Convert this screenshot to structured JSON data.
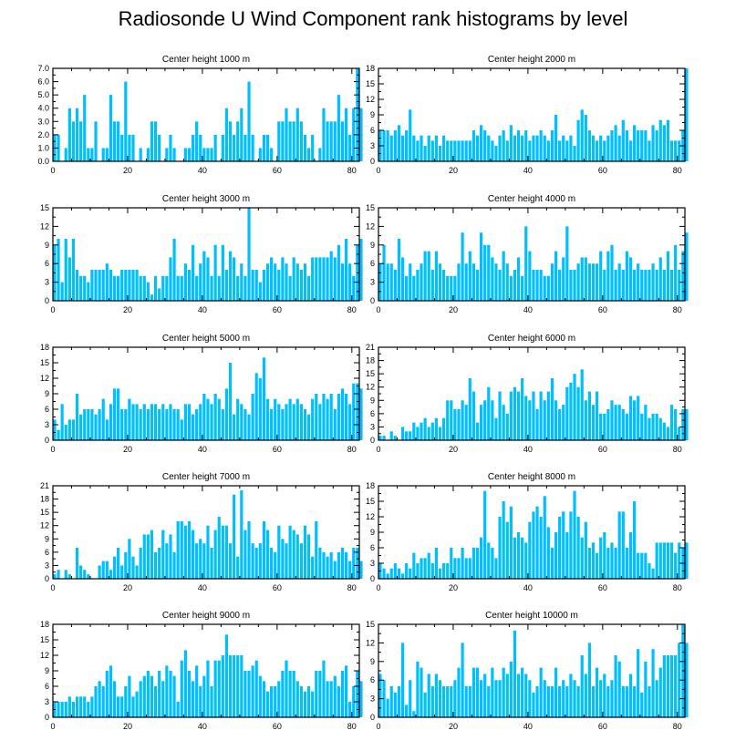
{
  "title": "Radiosonde U Wind Component rank histograms by level",
  "colors": {
    "bar": "#00bfff",
    "axis": "#000000"
  },
  "chart_data": [
    {
      "type": "bar",
      "title": "Center height 1000 m",
      "xlabel": "",
      "ylabel": "",
      "xlim": [
        0,
        82
      ],
      "ylim": [
        0,
        7
      ],
      "xticks": [
        "0",
        "20",
        "40",
        "60",
        "80"
      ],
      "yticks": [
        "0.0",
        "1.0",
        "2.0",
        "3.0",
        "4.0",
        "5.0",
        "6.0",
        "7.0"
      ],
      "values": [
        2,
        2,
        0,
        1,
        4,
        3,
        4,
        3,
        5,
        1,
        1,
        3,
        0,
        1,
        1,
        5,
        3,
        3,
        2,
        6,
        2,
        2,
        0,
        1,
        0,
        1,
        3,
        3,
        2,
        0,
        1,
        2,
        1,
        0,
        0,
        1,
        1,
        2,
        3,
        2,
        1,
        1,
        1,
        2,
        0,
        2,
        4,
        3,
        2,
        3,
        4,
        2,
        6,
        2,
        0,
        1,
        2,
        2,
        1,
        0,
        3,
        3,
        4,
        3,
        3,
        4,
        3,
        2,
        1,
        2,
        0,
        1,
        4,
        3,
        3,
        3,
        5,
        3,
        4,
        2,
        4,
        7,
        4
      ]
    },
    {
      "type": "bar",
      "title": "Center height 2000 m",
      "xlabel": "",
      "ylabel": "",
      "xlim": [
        0,
        82
      ],
      "ylim": [
        0,
        18
      ],
      "xticks": [
        "0",
        "20",
        "40",
        "60",
        "80"
      ],
      "yticks": [
        "0",
        "3",
        "6",
        "9",
        "12",
        "15",
        "18"
      ],
      "values": [
        6,
        6,
        6,
        5,
        6,
        7,
        5,
        6,
        10,
        5,
        4,
        5,
        3,
        5,
        4,
        5,
        3,
        5,
        4,
        4,
        4,
        4,
        4,
        4,
        4,
        6,
        5,
        7,
        6,
        5,
        4,
        3,
        5,
        6,
        4,
        7,
        5,
        6,
        5,
        6,
        4,
        5,
        5,
        6,
        5,
        4,
        6,
        9,
        4,
        5,
        4,
        5,
        3,
        8,
        10,
        9,
        6,
        5,
        4,
        5,
        4,
        5,
        6,
        7,
        5,
        8,
        6,
        4,
        7,
        6,
        6,
        6,
        4,
        7,
        6,
        8,
        7,
        8,
        4,
        4,
        4,
        6,
        18
      ]
    },
    {
      "type": "bar",
      "title": "Center height 3000 m",
      "xlabel": "",
      "ylabel": "",
      "xlim": [
        0,
        82
      ],
      "ylim": [
        0,
        15
      ],
      "xticks": [
        "0",
        "20",
        "40",
        "60",
        "80"
      ],
      "yticks": [
        "0",
        "3",
        "6",
        "9",
        "12",
        "15"
      ],
      "values": [
        9,
        10,
        3,
        10,
        7,
        10,
        5,
        4,
        4,
        3,
        5,
        5,
        5,
        5,
        6,
        5,
        4,
        4,
        5,
        5,
        5,
        5,
        5,
        4,
        4,
        3,
        1,
        4,
        2,
        4,
        4,
        7,
        10,
        4,
        4,
        6,
        5,
        9,
        4,
        6,
        8,
        7,
        4,
        9,
        4,
        9,
        5,
        8,
        7,
        4,
        6,
        4,
        15,
        5,
        5,
        3,
        5,
        6,
        7,
        6,
        5,
        7,
        6,
        4,
        7,
        6,
        5,
        6,
        4,
        7,
        7,
        7,
        7,
        7,
        8,
        7,
        9,
        6,
        10,
        6,
        4,
        9,
        10
      ]
    },
    {
      "type": "bar",
      "title": "Center height 4000 m",
      "xlabel": "",
      "ylabel": "",
      "xlim": [
        0,
        82
      ],
      "ylim": [
        0,
        15
      ],
      "xticks": [
        "0",
        "20",
        "40",
        "60",
        "80"
      ],
      "yticks": [
        "0",
        "3",
        "6",
        "9",
        "12",
        "15"
      ],
      "values": [
        6,
        9,
        6,
        6,
        5,
        10,
        7,
        4,
        6,
        4,
        5,
        6,
        8,
        8,
        5,
        8,
        6,
        5,
        4,
        4,
        4,
        6,
        11,
        6,
        8,
        6,
        5,
        11,
        9,
        9,
        7,
        6,
        5,
        8,
        6,
        4,
        5,
        7,
        4,
        12,
        8,
        5,
        5,
        5,
        4,
        4,
        6,
        8,
        5,
        7,
        12,
        5,
        5,
        6,
        7,
        7,
        6,
        6,
        6,
        8,
        5,
        8,
        9,
        5,
        6,
        5,
        8,
        7,
        5,
        6,
        5,
        5,
        5,
        6,
        5,
        7,
        5,
        8,
        5,
        9,
        5,
        8,
        11
      ]
    },
    {
      "type": "bar",
      "title": "Center height 5000 m",
      "xlabel": "",
      "ylabel": "",
      "xlim": [
        0,
        82
      ],
      "ylim": [
        0,
        18
      ],
      "xticks": [
        "0",
        "20",
        "40",
        "60",
        "80"
      ],
      "yticks": [
        "0",
        "3",
        "6",
        "9",
        "12",
        "15",
        "18"
      ],
      "values": [
        4,
        2,
        7,
        3,
        4,
        4,
        9,
        5,
        6,
        6,
        6,
        5,
        6,
        8,
        4,
        7,
        10,
        10,
        6,
        6,
        8,
        7,
        7,
        6,
        7,
        6,
        7,
        7,
        6,
        7,
        6,
        7,
        6,
        6,
        4,
        7,
        7,
        5,
        6,
        7,
        9,
        8,
        7,
        9,
        8,
        6,
        10,
        15,
        5,
        8,
        7,
        6,
        5,
        9,
        13,
        12,
        16,
        8,
        6,
        8,
        7,
        6,
        7,
        8,
        7,
        8,
        7,
        6,
        5,
        8,
        9,
        7,
        9,
        8,
        9,
        6,
        9,
        10,
        9,
        7,
        11,
        11,
        10
      ]
    },
    {
      "type": "bar",
      "title": "Center height 6000 m",
      "xlabel": "",
      "ylabel": "",
      "xlim": [
        0,
        82
      ],
      "ylim": [
        0,
        21
      ],
      "xticks": [
        "0",
        "20",
        "40",
        "60",
        "80"
      ],
      "yticks": [
        "0",
        "3",
        "6",
        "9",
        "12",
        "15",
        "18",
        "21"
      ],
      "values": [
        1,
        1,
        0,
        2,
        1,
        0,
        3,
        2,
        2,
        4,
        3,
        4,
        5,
        3,
        4,
        5,
        3,
        5,
        9,
        9,
        7,
        7,
        9,
        8,
        14,
        11,
        4,
        8,
        9,
        12,
        9,
        5,
        11,
        8,
        6,
        11,
        12,
        11,
        14,
        10,
        9,
        11,
        7,
        11,
        9,
        11,
        14,
        9,
        7,
        8,
        12,
        13,
        15,
        12,
        16,
        9,
        11,
        8,
        11,
        6,
        6,
        7,
        9,
        8,
        8,
        7,
        6,
        10,
        9,
        10,
        6,
        8,
        5,
        6,
        6,
        5,
        4,
        3,
        8,
        7,
        3,
        7,
        7
      ]
    },
    {
      "type": "bar",
      "title": "Center height 7000 m",
      "xlabel": "",
      "ylabel": "",
      "xlim": [
        0,
        82
      ],
      "ylim": [
        0,
        21
      ],
      "xticks": [
        "0",
        "20",
        "40",
        "60",
        "80"
      ],
      "yticks": [
        "0",
        "3",
        "6",
        "9",
        "12",
        "15",
        "18",
        "21"
      ],
      "values": [
        1,
        2,
        0,
        2,
        1,
        0,
        7,
        3,
        2,
        1,
        0,
        0,
        3,
        4,
        4,
        2,
        5,
        7,
        3,
        6,
        9,
        5,
        3,
        7,
        10,
        10,
        11,
        6,
        7,
        11,
        8,
        10,
        6,
        13,
        13,
        12,
        13,
        11,
        8,
        9,
        8,
        12,
        7,
        11,
        14,
        12,
        12,
        8,
        19,
        5,
        20,
        11,
        13,
        8,
        7,
        8,
        13,
        11,
        7,
        6,
        12,
        9,
        8,
        12,
        11,
        10,
        8,
        12,
        10,
        5,
        13,
        7,
        6,
        5,
        6,
        4,
        6,
        7,
        6,
        4,
        7,
        7,
        4
      ]
    },
    {
      "type": "bar",
      "title": "Center height 8000 m",
      "xlabel": "",
      "ylabel": "",
      "xlim": [
        0,
        82
      ],
      "ylim": [
        0,
        18
      ],
      "xticks": [
        "0",
        "20",
        "40",
        "60",
        "80"
      ],
      "yticks": [
        "0",
        "3",
        "6",
        "9",
        "12",
        "15",
        "18"
      ],
      "values": [
        3,
        2,
        1,
        2,
        3,
        2,
        1,
        3,
        2,
        5,
        3,
        4,
        4,
        5,
        3,
        6,
        2,
        3,
        3,
        6,
        4,
        4,
        6,
        4,
        4,
        6,
        6,
        8,
        17,
        7,
        6,
        4,
        12,
        15,
        11,
        14,
        8,
        9,
        8,
        7,
        11,
        13,
        14,
        12,
        16,
        10,
        6,
        9,
        12,
        13,
        9,
        13,
        17,
        12,
        8,
        11,
        6,
        7,
        5,
        8,
        9,
        6,
        7,
        6,
        13,
        13,
        6,
        9,
        15,
        5,
        5,
        5,
        3,
        2,
        7,
        7,
        7,
        7,
        7,
        5,
        7,
        6,
        7
      ]
    },
    {
      "type": "bar",
      "title": "Center height 9000 m",
      "xlabel": "",
      "ylabel": "",
      "xlim": [
        0,
        82
      ],
      "ylim": [
        0,
        18
      ],
      "xticks": [
        "0",
        "20",
        "40",
        "60",
        "80"
      ],
      "yticks": [
        "0",
        "3",
        "6",
        "9",
        "12",
        "15",
        "18"
      ],
      "values": [
        3,
        3,
        3,
        3,
        4,
        3,
        4,
        4,
        4,
        3,
        4,
        6,
        7,
        6,
        9,
        10,
        7,
        4,
        4,
        6,
        8,
        4,
        5,
        7,
        8,
        9,
        8,
        6,
        9,
        7,
        10,
        9,
        8,
        3,
        11,
        13,
        9,
        7,
        10,
        6,
        8,
        11,
        6,
        11,
        11,
        12,
        16,
        12,
        12,
        12,
        12,
        9,
        9,
        10,
        11,
        8,
        7,
        5,
        6,
        6,
        7,
        9,
        11,
        9,
        9,
        7,
        6,
        5,
        6,
        5,
        9,
        9,
        11,
        7,
        7,
        8,
        6,
        9,
        10,
        3,
        6,
        9,
        7
      ]
    },
    {
      "type": "bar",
      "title": "Center height 10000 m",
      "xlabel": "",
      "ylabel": "",
      "xlim": [
        0,
        82
      ],
      "ylim": [
        0,
        15
      ],
      "xticks": [
        "0",
        "20",
        "40",
        "60",
        "80"
      ],
      "yticks": [
        "0",
        "3",
        "6",
        "9",
        "12",
        "15"
      ],
      "values": [
        7,
        6,
        3,
        5,
        4,
        5,
        12,
        2,
        6,
        1,
        9,
        8,
        4,
        7,
        5,
        7,
        6,
        5,
        5,
        5,
        6,
        8,
        12,
        5,
        5,
        8,
        8,
        6,
        7,
        5,
        8,
        6,
        6,
        8,
        7,
        9,
        14,
        7,
        8,
        7,
        6,
        4,
        5,
        8,
        6,
        5,
        5,
        8,
        5,
        6,
        5,
        7,
        6,
        5,
        10,
        7,
        12,
        5,
        8,
        6,
        7,
        5,
        6,
        10,
        9,
        5,
        5,
        7,
        5,
        11,
        4,
        9,
        5,
        11,
        6,
        8,
        10,
        10,
        10,
        10,
        12,
        15,
        12
      ]
    }
  ]
}
